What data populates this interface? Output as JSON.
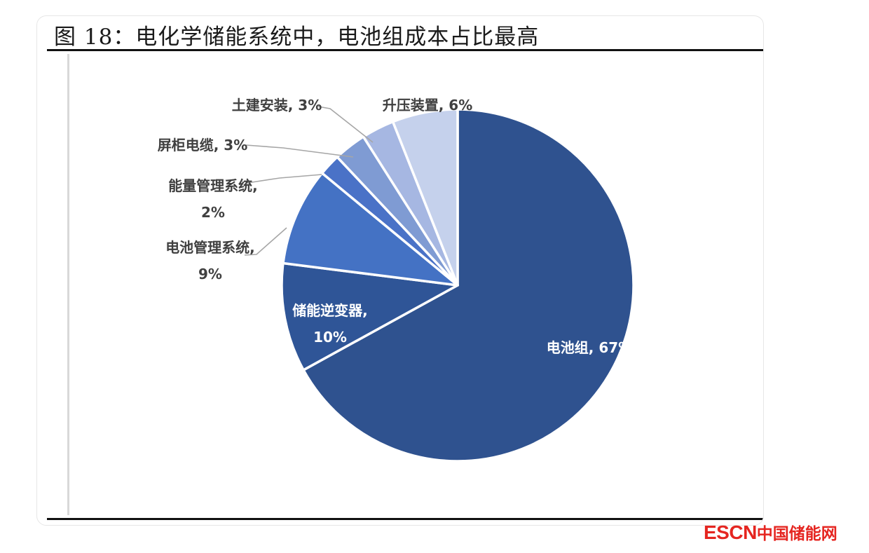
{
  "figure": {
    "title": "图 18：电化学储能系统中，电池组成本占比最高"
  },
  "chart_data": {
    "type": "pie",
    "title": "",
    "start_angle_deg": 0,
    "direction": "clockwise",
    "slices": [
      {
        "label": "电池组",
        "value": 67,
        "value_label": "67%",
        "color": "#2f528f",
        "label_position": "inside"
      },
      {
        "label": "储能逆变器",
        "value": 10,
        "value_label": "10%",
        "color": "#2f5597",
        "label_position": "inside"
      },
      {
        "label": "电池管理系统",
        "value": 9,
        "value_label": "9%",
        "color": "#4472c4",
        "label_position": "outside"
      },
      {
        "label": "能量管理系统",
        "value": 2,
        "value_label": "2%",
        "color": "#4a72c7",
        "label_position": "outside"
      },
      {
        "label": "屏柜电缆",
        "value": 3,
        "value_label": "3%",
        "color": "#7f9bd3",
        "label_position": "outside"
      },
      {
        "label": "土建安装",
        "value": 3,
        "value_label": "3%",
        "color": "#a6b7e2",
        "label_position": "outside"
      },
      {
        "label": "升压装置",
        "value": 6,
        "value_label": "6%",
        "color": "#c5d1ec",
        "label_position": "outside"
      }
    ],
    "label_texts": {
      "电池组": [
        "电池组, 67%"
      ],
      "储能逆变器": [
        "储能逆变器,",
        "10%"
      ],
      "电池管理系统": [
        "电池管理系统,",
        "9%"
      ],
      "能量管理系统": [
        "能量管理系统,",
        "2%"
      ],
      "屏柜电缆": [
        "屏柜电缆, 3%"
      ],
      "土建安装": [
        "土建安装, 3%"
      ],
      "升压装置": [
        "升压装置, 6%"
      ]
    },
    "legend": "none"
  },
  "watermark": {
    "brand": "ESCN",
    "name": "中国储能网",
    "color": "#e52520"
  }
}
